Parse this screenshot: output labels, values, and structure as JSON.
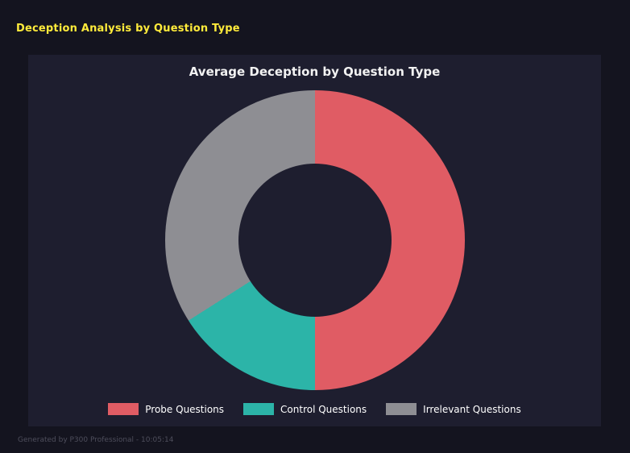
{
  "header": {
    "title": "Deception Analysis by Question Type",
    "title_color": "#ffeb3b"
  },
  "chart_data": {
    "type": "pie",
    "subtype": "donut",
    "title": "Average Deception by Question Type",
    "legend_position": "bottom",
    "start_angle_deg": 0,
    "direction": "clockwise",
    "background_color": "#1e1e2f",
    "slices": [
      {
        "label": "Probe Questions",
        "pct": 50,
        "color": "#e05c64"
      },
      {
        "label": "Control Questions",
        "pct": 16,
        "color": "#2cb4a8"
      },
      {
        "label": "Irrelevant Questions",
        "pct": 34,
        "color": "#8e8e93"
      }
    ]
  },
  "footer": {
    "text": "Generated by P300 Professional - 10:05:14"
  }
}
